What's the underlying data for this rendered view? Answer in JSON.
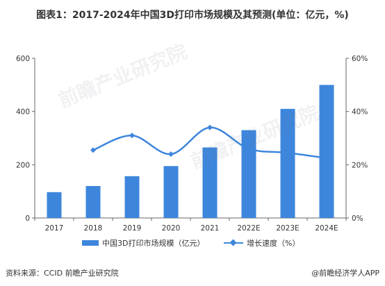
{
  "title": "图表1：2017-2024年中国3D打印市场规模及其预测(单位：亿元，%)",
  "chart_data": {
    "type": "bar",
    "categories": [
      "2017",
      "2018",
      "2019",
      "2020",
      "2021",
      "2022E",
      "2023E",
      "2024E"
    ],
    "series": [
      {
        "name": "中国3D打印市场规模（亿元）",
        "type": "bar",
        "axis": "left",
        "values": [
          97,
          120,
          157,
          195,
          265,
          330,
          410,
          500
        ]
      },
      {
        "name": "增长速度（%）",
        "type": "line",
        "axis": "right",
        "values": [
          null,
          25.5,
          31,
          24,
          34,
          26,
          24.5,
          22.5
        ]
      }
    ],
    "y_left": {
      "min": 0,
      "max": 600,
      "ticks": [
        "0",
        "200",
        "400",
        "600"
      ]
    },
    "y_right": {
      "min": 0,
      "max": 60,
      "ticks": [
        "0%",
        "20%",
        "40%",
        "60%"
      ]
    },
    "colors": {
      "bar": "#3d86dc",
      "line": "#3d86dc"
    },
    "legend_position": "bottom",
    "grid": false
  },
  "source": "资料来源：CCID 前瞻产业研究院",
  "brand": "@前瞻经济学人APP",
  "watermark": "前瞻产业研究院"
}
